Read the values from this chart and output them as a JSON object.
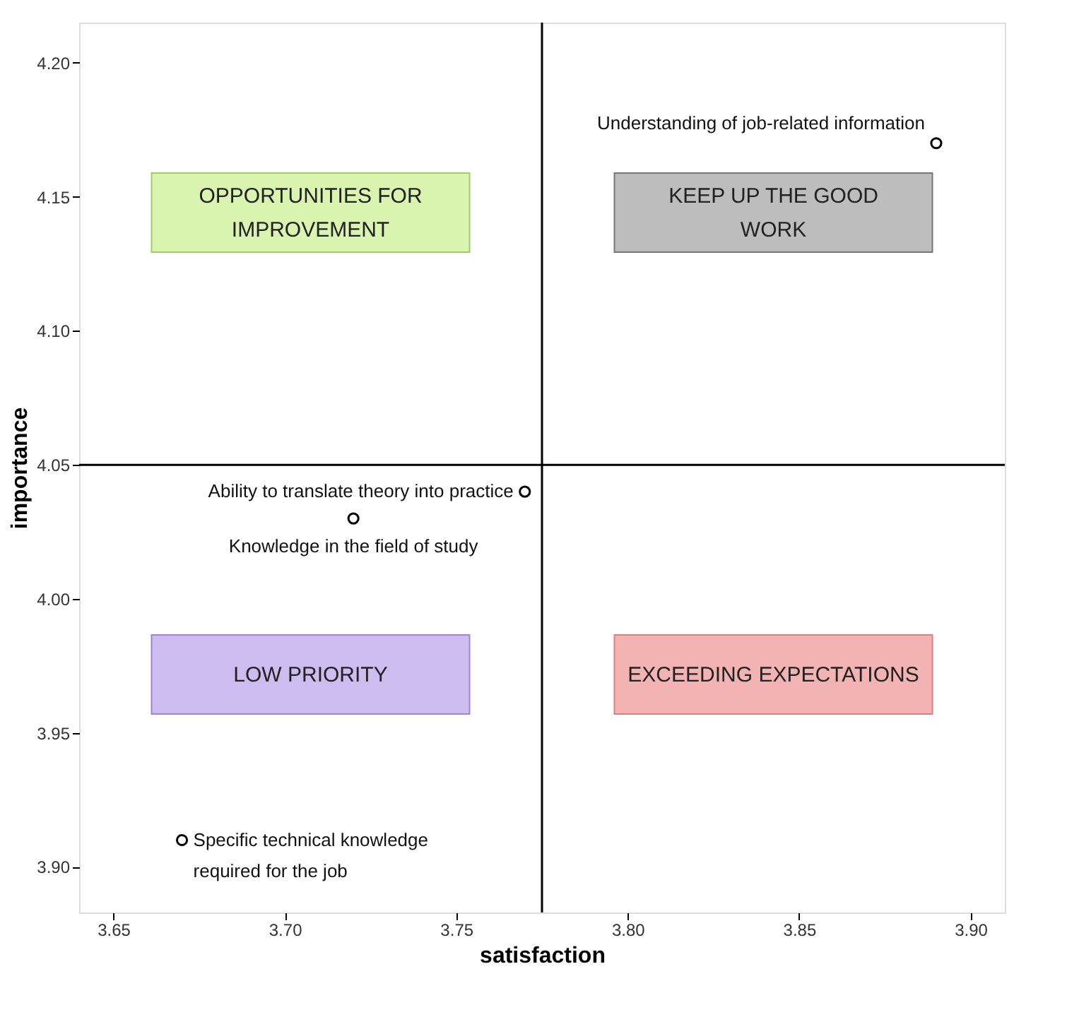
{
  "chart_data": {
    "type": "scatter",
    "xlabel": "satisfaction",
    "ylabel": "importance",
    "x": [
      3.89,
      3.77,
      3.72,
      3.67
    ],
    "series": [
      {
        "color": "#000000",
        "values": [
          4.17,
          4.04,
          4.03,
          3.91
        ]
      }
    ],
    "marker": "circle",
    "grid": false,
    "legend": false,
    "xlim": [
      3.64,
      3.91
    ],
    "ylim": [
      3.883,
      4.215
    ],
    "xticks": [
      3.65,
      {
        "value": 3.7,
        "label": "3.70"
      },
      3.75,
      {
        "value": 3.8,
        "label": "3.80"
      },
      3.85,
      {
        "value": 3.9,
        "label": "3.90"
      }
    ],
    "yticks": [
      {
        "value": 3.9,
        "label": "3.90"
      },
      3.95,
      {
        "value": 4.0,
        "label": "4.00"
      },
      4.05,
      {
        "value": 4.1,
        "label": "4.10"
      },
      4.15,
      {
        "value": 4.2,
        "label": "4.20"
      }
    ],
    "ref_lines": [
      {
        "axis": "x",
        "value": 3.775
      },
      {
        "axis": "y",
        "value": 4.05
      }
    ],
    "annotations": [
      {
        "text": "Understanding of job-related information",
        "x": 3.89,
        "y": 4.17
      },
      {
        "text": "Ability to translate theory into practice",
        "x": 3.77,
        "y": 4.04
      },
      {
        "text": "Knowledge in the field of study",
        "x": 3.72,
        "y": 4.03
      },
      {
        "text": "Specific technical knowledge\nrequired for the job",
        "x": 3.67,
        "y": 3.91
      },
      "OPPORTUNITIES FOR\nIMPROVEMENT",
      "KEEP UP THE GOOD\nWORK",
      "LOW PRIORITY",
      "EXCEEDING EXPECTATIONS"
    ]
  }
}
